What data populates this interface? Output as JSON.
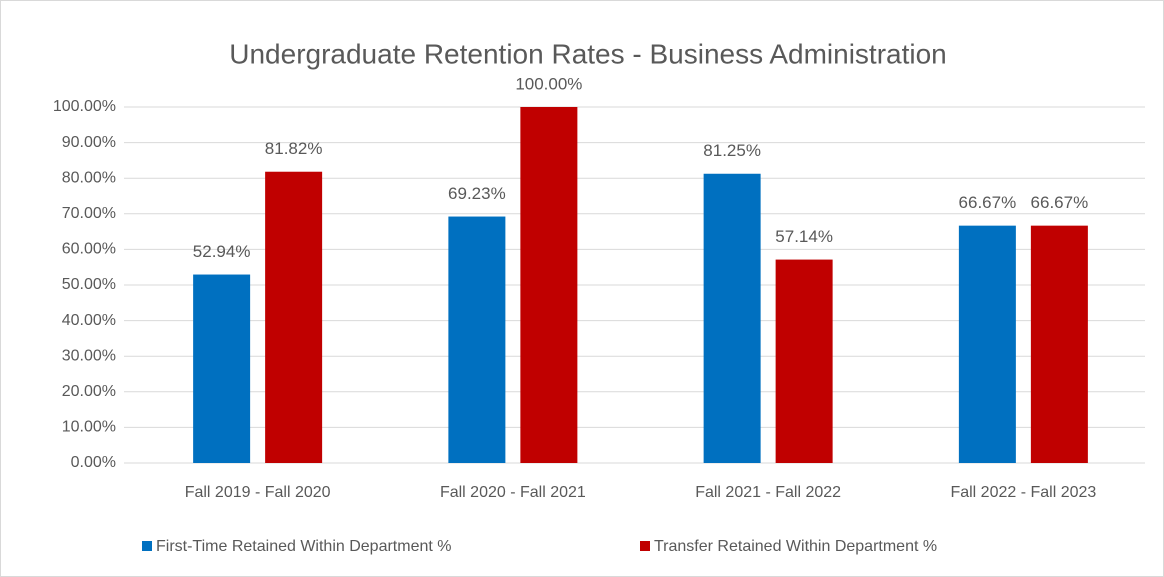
{
  "chart_data": {
    "type": "bar",
    "title": "Undergraduate Retention Rates - Business Administration",
    "categories": [
      "Fall 2019 - Fall 2020",
      "Fall 2020 - Fall 2021",
      "Fall 2021 - Fall 2022",
      "Fall 2022 - Fall 2023"
    ],
    "series": [
      {
        "name": "First-Time Retained Within Department %",
        "color": "#0070c0",
        "values": [
          52.94,
          69.23,
          81.25,
          66.67
        ],
        "value_labels": [
          "52.94%",
          "69.23%",
          "81.25%",
          "66.67%"
        ]
      },
      {
        "name": "Transfer Retained Within Department %",
        "color": "#c00000",
        "values": [
          81.82,
          100,
          57.14,
          66.67
        ],
        "value_labels": [
          "81.82%",
          "100.00%",
          "57.14%",
          "66.67%"
        ]
      }
    ],
    "ylim": [
      0,
      100
    ],
    "yticks": [
      {
        "value": 0,
        "label": "0.00%"
      },
      {
        "value": 10,
        "label": "10.00%"
      },
      {
        "value": 20,
        "label": "20.00%"
      },
      {
        "value": 30,
        "label": "30.00%"
      },
      {
        "value": 40,
        "label": "40.00%"
      },
      {
        "value": 50,
        "label": "50.00%"
      },
      {
        "value": 60,
        "label": "60.00%"
      },
      {
        "value": 70,
        "label": "70.00%"
      },
      {
        "value": 80,
        "label": "80.00%"
      },
      {
        "value": 90,
        "label": "90.00%"
      },
      {
        "value": 100,
        "label": "100.00%"
      }
    ],
    "grid": true,
    "legend": "bottom"
  }
}
